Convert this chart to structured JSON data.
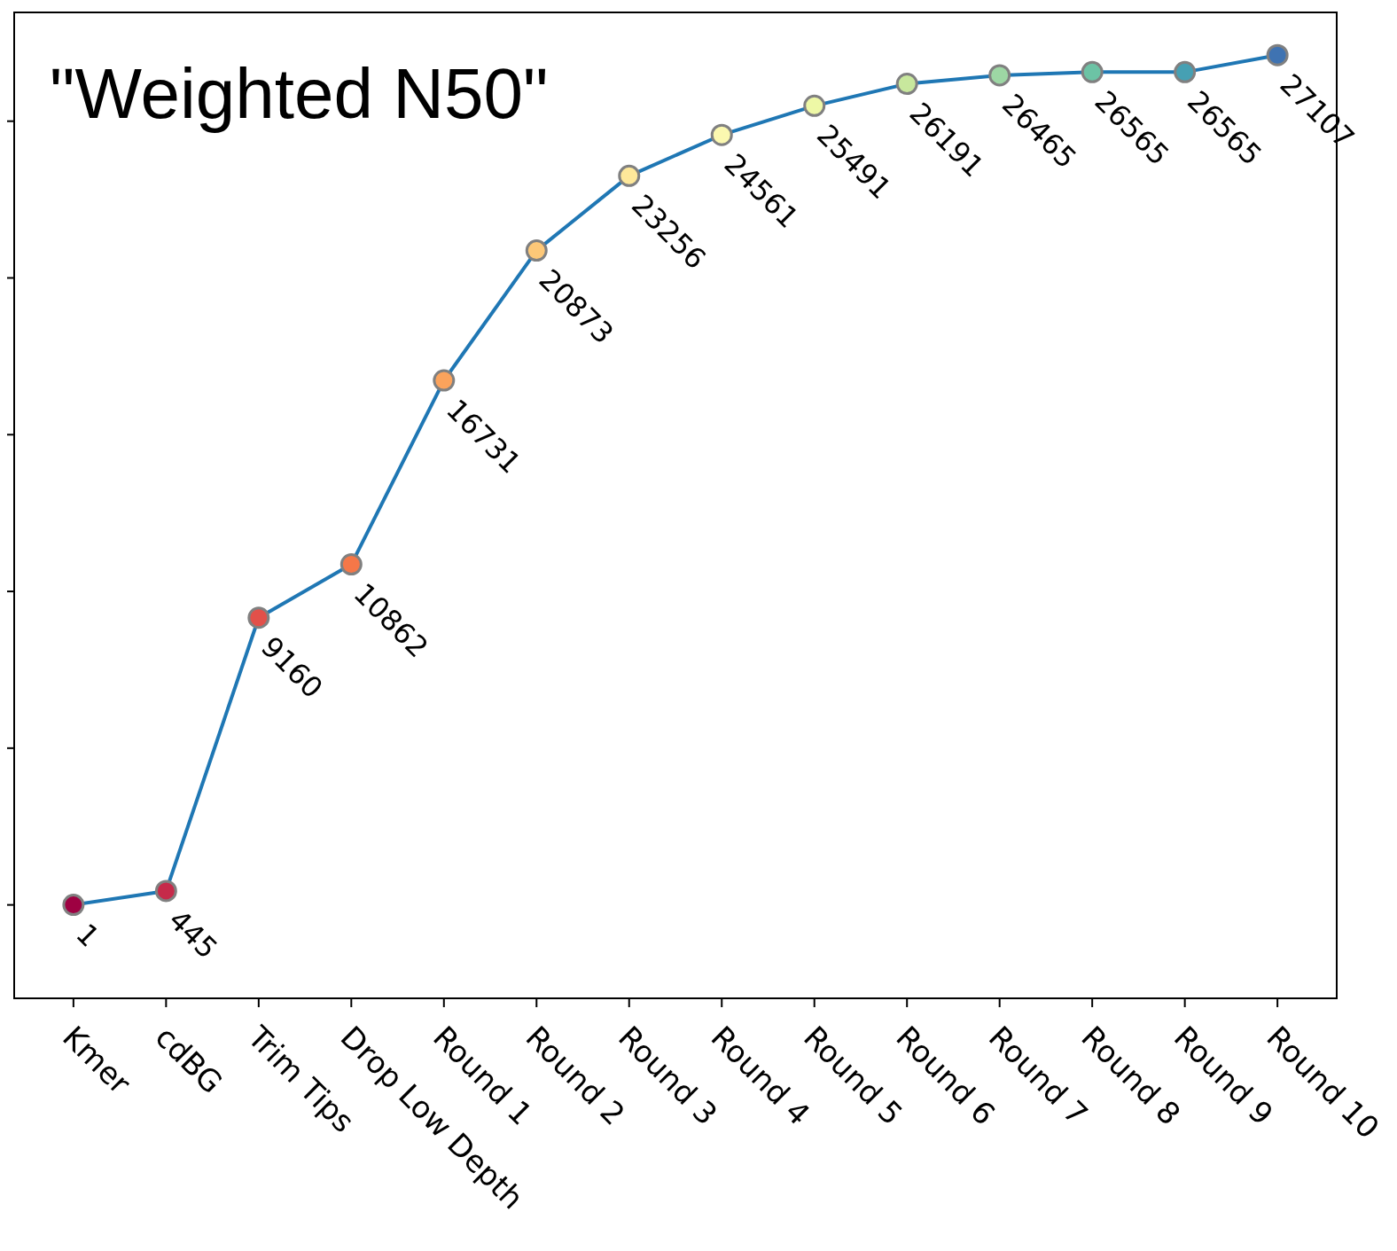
{
  "chart_data": {
    "type": "line",
    "title": "\"Weighted N50\"",
    "categories": [
      "Kmer",
      "cdBG",
      "Trim Tips",
      "Drop Low Depth",
      "Round 1",
      "Round 2",
      "Round 3",
      "Round 4",
      "Round 5",
      "Round 6",
      "Round 7",
      "Round 8",
      "Round 9",
      "Round 10"
    ],
    "series": [
      {
        "color": "#1f77b4",
        "values": [
          1,
          445,
          9160,
          10862,
          16731,
          20873,
          23256,
          24561,
          25491,
          26191,
          26465,
          26565,
          26565,
          27107
        ],
        "colors": [
          "#9e0142",
          "#c62a4a",
          "#e2504a",
          "#f57748",
          "#fba35c",
          "#fdc878",
          "#fee89a",
          "#fbf8b0",
          "#eef8a6",
          "#c8e89d",
          "#9dd7a4",
          "#6cc3a5",
          "#46a0b3",
          "#3f73b2"
        ]
      }
    ],
    "ylim": [
      -2980,
      28470
    ],
    "yticks": [
      {
        "value": 0,
        "label": null
      },
      {
        "value": 5000,
        "label": null
      },
      {
        "value": 10000,
        "label": null
      },
      {
        "value": 15000,
        "label": null
      },
      {
        "value": 20000,
        "label": null
      },
      {
        "value": 25000,
        "label": null
      }
    ],
    "tick_labels": "x",
    "data_labels": true,
    "marker": "circle",
    "line_style": "solid"
  }
}
